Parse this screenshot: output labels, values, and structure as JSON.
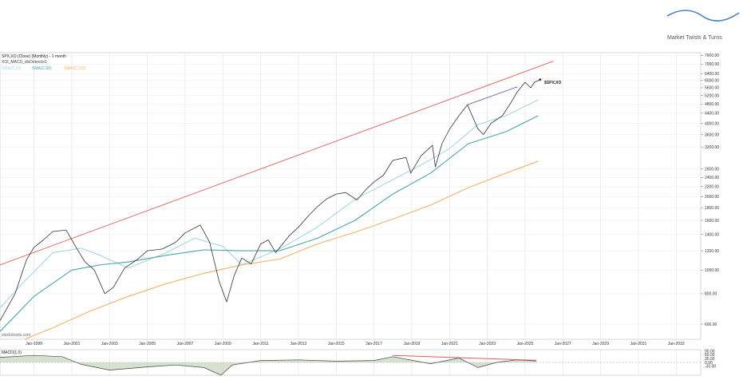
{
  "branding": {
    "name": "Market Twists & Turns",
    "logo_icon": "wave-logo-icon"
  },
  "header": {
    "title": "SPX,XO (Close) (Monthly) - 1 month",
    "subtitle": "XOI_MACD_divDetector1",
    "legend": [
      {
        "label": "SMA(C,24)",
        "color": "#a8d8df"
      },
      {
        "label": "SMA(C,60)",
        "color": "#4aa6a8"
      },
      {
        "label": "SMA(C,120)",
        "color": "#f4b469"
      }
    ]
  },
  "watermark": "stockcharts.com",
  "macd_label": "MACD(1,0)",
  "price_label": "$SPX,XO",
  "chart_data": [
    {
      "type": "line",
      "title": "SPX,XO (Close) (Monthly) - 1 month",
      "yscale": "log",
      "ylim": [
        520,
        7800
      ],
      "xlim": [
        1997.2,
        2034.3
      ],
      "grid": true,
      "x_ticks": [
        "Jan-1999",
        "Jan-2001",
        "Jan-2003",
        "Jan-2005",
        "Jan-2007",
        "Jan-2009",
        "Jan-2011",
        "Jan-2013",
        "Jan-2015",
        "Jan-2017",
        "Jan-2019",
        "Jan-2021",
        "Jan-2023",
        "Jan-2025",
        "Jan-2027",
        "Jan-2029",
        "Jan-2031",
        "Jan-2033"
      ],
      "y_ticks": [
        600,
        800,
        1000,
        1200,
        1400,
        1600,
        1800,
        2000,
        2200,
        2400,
        2600,
        3200,
        3600,
        4000,
        4400,
        4800,
        5200,
        5600,
        6000,
        6400,
        7000,
        7600
      ],
      "series": [
        {
          "name": "SPX,XO",
          "color": "#333333",
          "x": [
            1997.2,
            1998.0,
            1998.6,
            1999.0,
            1999.5,
            2000.0,
            2000.7,
            2001.2,
            2001.7,
            2002.2,
            2002.75,
            2003.2,
            2003.8,
            2004.5,
            2005.0,
            2005.8,
            2006.5,
            2007.0,
            2007.8,
            2008.3,
            2008.8,
            2009.2,
            2009.6,
            2010.0,
            2010.5,
            2011.0,
            2011.4,
            2011.8,
            2012.5,
            2013.0,
            2013.5,
            2014.0,
            2014.5,
            2015.0,
            2015.5,
            2016.1,
            2016.6,
            2017.0,
            2017.5,
            2018.0,
            2018.7,
            2018.95,
            2019.5,
            2020.1,
            2020.25,
            2020.6,
            2021.0,
            2021.5,
            2021.95,
            2022.5,
            2022.8,
            2023.2,
            2023.8,
            2024.2,
            2024.6,
            2025.0,
            2025.3,
            2025.5,
            2025.8
          ],
          "y": [
            620,
            800,
            1100,
            1240,
            1330,
            1440,
            1460,
            1250,
            1080,
            1000,
            800,
            850,
            1020,
            1110,
            1200,
            1220,
            1300,
            1420,
            1530,
            1300,
            900,
            740,
            950,
            1120,
            1060,
            1280,
            1330,
            1180,
            1380,
            1500,
            1660,
            1820,
            1960,
            2050,
            2080,
            1940,
            2150,
            2300,
            2450,
            2820,
            2900,
            2500,
            2950,
            3250,
            2650,
            3300,
            3780,
            4300,
            4770,
            3800,
            3600,
            4000,
            4300,
            4800,
            5400,
            5900,
            5600,
            5900,
            6050
          ]
        },
        {
          "name": "SMA(C,24)",
          "color": "#a8d8df",
          "x": [
            1997.2,
            1998.5,
            2000.0,
            2001.5,
            2002.5,
            2004.0,
            2006.0,
            2007.5,
            2009.0,
            2010.0,
            2012.0,
            2014.0,
            2016.0,
            2018.0,
            2019.5,
            2021.0,
            2022.5,
            2024.0,
            2025.7
          ],
          "y": [
            700,
            900,
            1180,
            1230,
            1150,
            1020,
            1180,
            1350,
            1250,
            1050,
            1220,
            1500,
            1950,
            2350,
            2700,
            3150,
            3950,
            4300,
            5000
          ]
        },
        {
          "name": "SMA(C,60)",
          "color": "#4aa6a8",
          "x": [
            1997.2,
            1999.0,
            2001.0,
            2002.5,
            2004.0,
            2006.0,
            2008.0,
            2010.0,
            2012.0,
            2014.0,
            2016.0,
            2018.0,
            2020.0,
            2022.0,
            2024.0,
            2025.7
          ],
          "y": [
            560,
            780,
            1000,
            1050,
            1080,
            1150,
            1210,
            1200,
            1200,
            1350,
            1600,
            2050,
            2500,
            3300,
            3700,
            4300
          ]
        },
        {
          "name": "SMA(C,120)",
          "color": "#f4b469",
          "x": [
            1998.5,
            2000.0,
            2002.0,
            2004.0,
            2006.0,
            2008.0,
            2010.0,
            2012.0,
            2014.0,
            2016.0,
            2018.0,
            2020.0,
            2022.0,
            2024.0,
            2025.7
          ],
          "y": [
            520,
            580,
            680,
            780,
            880,
            970,
            1050,
            1110,
            1280,
            1430,
            1620,
            1850,
            2180,
            2500,
            2800
          ]
        },
        {
          "name": "Trendline",
          "color": "#e05c5c",
          "x": [
            1997.2,
            2026.5
          ],
          "y": [
            1050,
            7200
          ]
        },
        {
          "name": "Divergence line",
          "color": "#5a4fb8",
          "x": [
            2021.95,
            2024.6
          ],
          "y": [
            4770,
            5650
          ]
        }
      ]
    },
    {
      "type": "area",
      "title": "MACD(1,0)",
      "ylim": [
        -100,
        100
      ],
      "y_ticks": [
        90,
        60,
        30,
        0,
        -30
      ],
      "series": [
        {
          "name": "MACD",
          "color": "#444444",
          "x": [
            1997.2,
            1999.0,
            2000.5,
            2001.5,
            2003.0,
            2005.0,
            2006.5,
            2008.0,
            2008.9,
            2009.5,
            2011.0,
            2013.0,
            2015.0,
            2017.0,
            2018.0,
            2020.0,
            2021.5,
            2022.5,
            2023.5,
            2024.5,
            2025.6
          ],
          "y": [
            40,
            55,
            45,
            -15,
            -60,
            -35,
            -20,
            -40,
            -100,
            -20,
            15,
            20,
            10,
            15,
            45,
            -10,
            35,
            -40,
            0,
            20,
            12
          ]
        },
        {
          "name": "Divergence",
          "color": "#e05c5c",
          "x": [
            2018.0,
            2025.6
          ],
          "y": [
            55,
            16
          ]
        }
      ]
    }
  ]
}
